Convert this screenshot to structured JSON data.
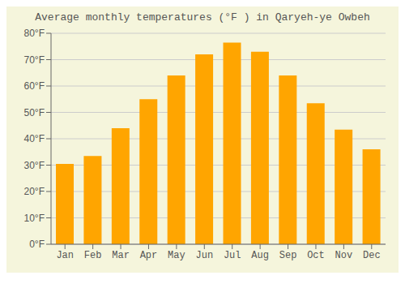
{
  "chart_data": {
    "type": "bar",
    "title": "Average monthly temperatures (°F ) in Qaryeh-ye Owbeh",
    "categories": [
      "Jan",
      "Feb",
      "Mar",
      "Apr",
      "May",
      "Jun",
      "Jul",
      "Aug",
      "Sep",
      "Oct",
      "Nov",
      "Dec"
    ],
    "values": [
      30.5,
      33.5,
      44,
      55,
      64,
      72,
      76.5,
      73,
      64,
      53.5,
      43.5,
      36
    ],
    "color": "#FFA500",
    "ylim": [
      0,
      80
    ],
    "yticks": [
      {
        "value": 0,
        "label": "0°F"
      },
      {
        "value": 10,
        "label": "10°F"
      },
      {
        "value": 20,
        "label": "20°F"
      },
      {
        "value": 30,
        "label": "30°F"
      },
      {
        "value": 40,
        "label": "40°F"
      },
      {
        "value": 50,
        "label": "50°F"
      },
      {
        "value": 60,
        "label": "60°F"
      },
      {
        "value": 70,
        "label": "70°F"
      },
      {
        "value": 80,
        "label": "80°F"
      }
    ],
    "grid": true
  }
}
